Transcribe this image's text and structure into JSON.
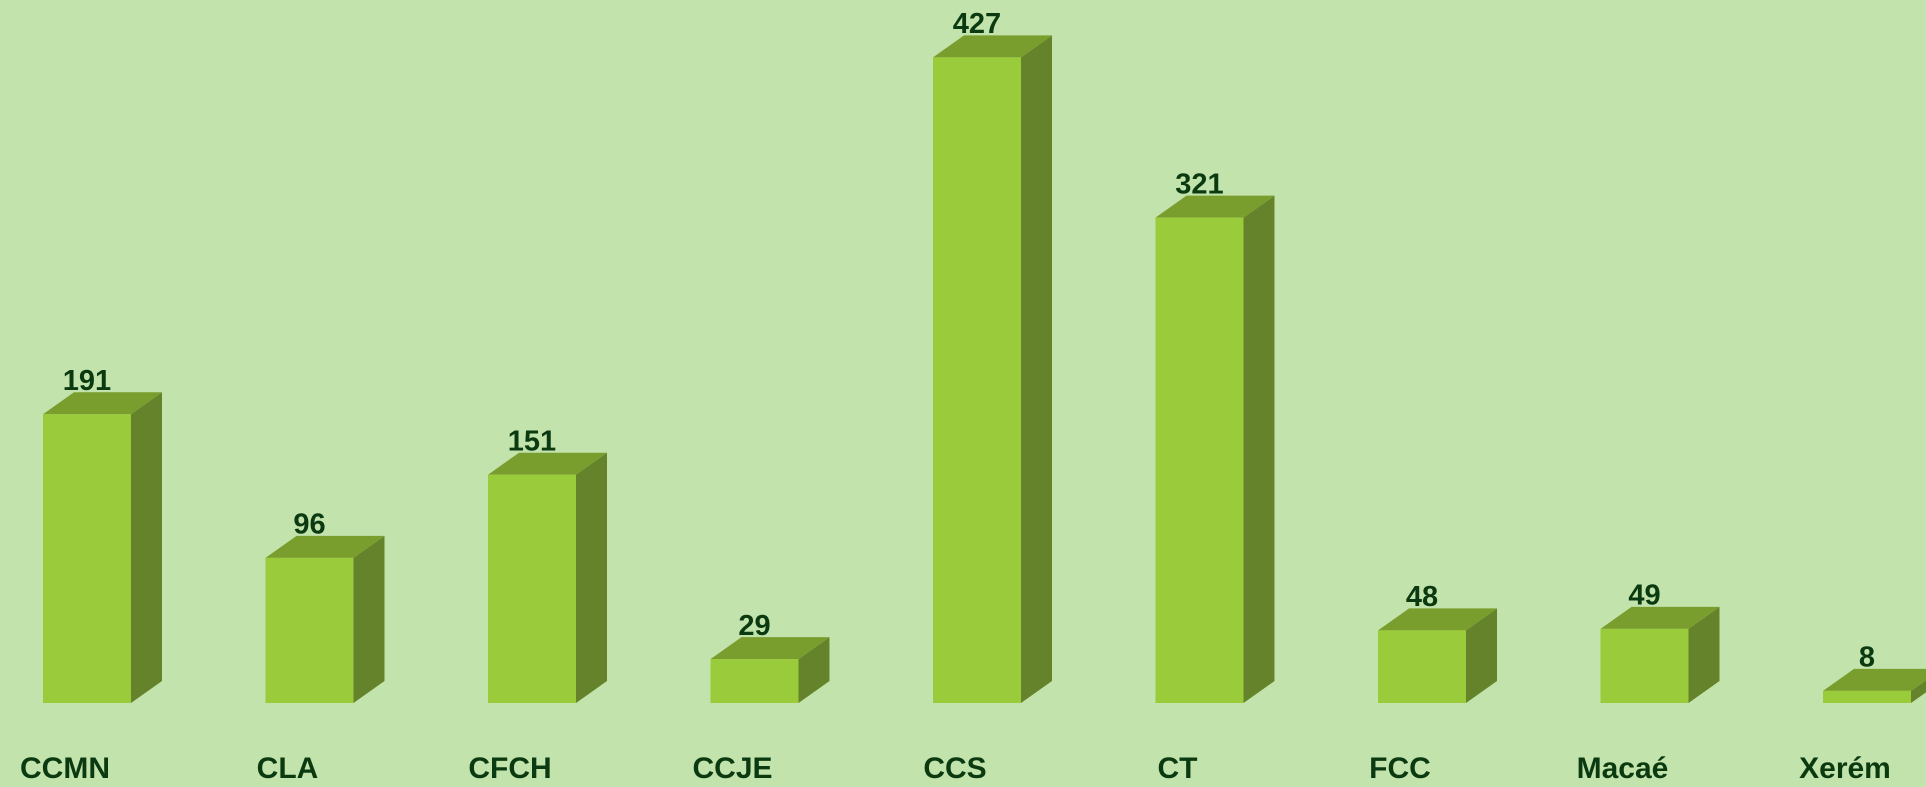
{
  "chart_data": {
    "type": "bar3d",
    "categories": [
      "CCMN",
      "CLA",
      "CFCH",
      "CCJE",
      "CCS",
      "CT",
      "FCC",
      "Macaé",
      "Xerém"
    ],
    "values": [
      191,
      96,
      151,
      29,
      427,
      321,
      48,
      49,
      8
    ],
    "color": "#9acb3a"
  }
}
